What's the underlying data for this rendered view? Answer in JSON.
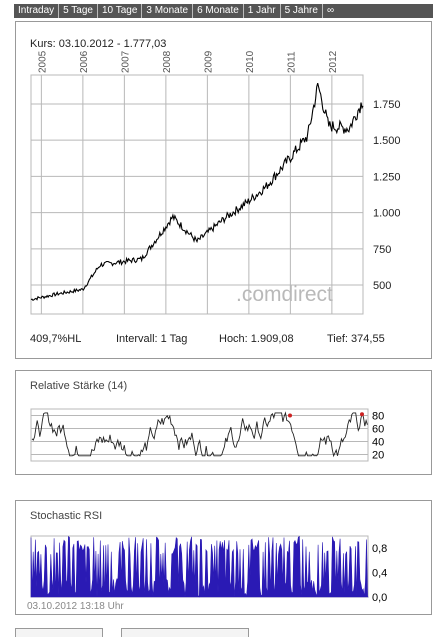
{
  "tabs": [
    "Intraday",
    "5 Tage",
    "10 Tage",
    "3 Monate",
    "6 Monate",
    "1 Jahr",
    "5 Jahre",
    "∞"
  ],
  "price_panel": {
    "kurs_label": "Kurs:",
    "kurs_date": "03.10.2012",
    "kurs_value": "1.777,03",
    "watermark": ".comdirect",
    "stats": {
      "pct": "409,7%HL",
      "intervall": "Intervall: 1 Tag",
      "hoch": "Hoch: 1.909,08",
      "tief": "Tief: 374,55"
    }
  },
  "rsi_panel": {
    "title": "Relative Stärke (14)"
  },
  "stoch_panel": {
    "title": "Stochastic RSI",
    "timestamp": "03.10.2012 13:18 Uhr"
  },
  "colors": {
    "tab_bar": "#555555",
    "line": "#000000",
    "stoch_fill": "#2a1ab4",
    "rsi_marker": "#cc2222",
    "grid": "#b8b8b8"
  },
  "chart_data": [
    {
      "type": "line",
      "series": [
        {
          "name": "",
          "x": [
            "2004-10",
            "2005-06",
            "2006-01",
            "2006-06",
            "2007-06",
            "2008-03",
            "2008-10",
            "2009-06",
            "2010-01",
            "2010-06",
            "2011-01",
            "2011-06",
            "2011-09",
            "2011-12",
            "2012-06",
            "2012-10"
          ],
          "values": [
            400,
            440,
            470,
            640,
            680,
            970,
            800,
            960,
            1080,
            1180,
            1380,
            1530,
            1880,
            1600,
            1580,
            1777
          ]
        }
      ],
      "x_ticks": [
        "2005",
        "2006",
        "2007",
        "2008",
        "2009",
        "2010",
        "2011",
        "2012"
      ],
      "y_ticks": [
        "500",
        "750",
        "1.000",
        "1.250",
        "1.500",
        "1.750"
      ],
      "ylim": [
        300,
        1950
      ],
      "grid": true
    },
    {
      "type": "line",
      "series": [
        {
          "name": "Relative Stärke (14)"
        }
      ],
      "y_ticks": [
        "20",
        "40",
        "60",
        "80"
      ],
      "ylim": [
        10,
        90
      ],
      "grid": true
    },
    {
      "type": "area",
      "series": [
        {
          "name": "Stochastic RSI"
        }
      ],
      "y_ticks": [
        "0,0",
        "0,4",
        "0,8"
      ],
      "ylim": [
        0,
        1
      ]
    }
  ]
}
